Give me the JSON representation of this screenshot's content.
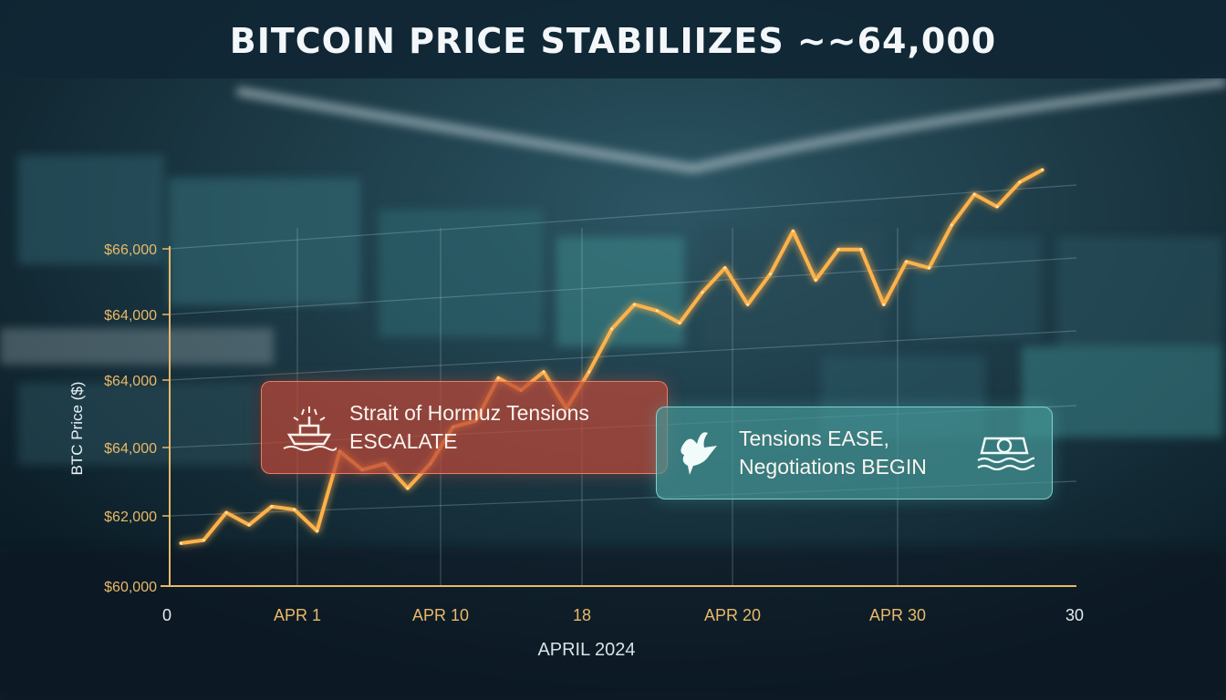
{
  "title": "BITCOIN PRICE STABILIIZES ~~64,000",
  "colors": {
    "line": "#ffb24a",
    "tick_labels": "#e9b968",
    "gridline": "rgba(200,220,230,0.25)",
    "event_negative": "#c04a3a",
    "event_positive": "#4a9a98"
  },
  "annotations": [
    {
      "id": "hormuz",
      "line1": "Strait of Hormuz Tensions",
      "line2": "ESCALATE",
      "icon": "ship-fire-icon"
    },
    {
      "id": "ease",
      "line1": "Tensions EASE,",
      "line2": "Negotiations BEGIN",
      "icon": "dove-icon",
      "icon2": "ship-waves-icon"
    }
  ],
  "chart_data": {
    "type": "line",
    "title": "BITCOIN PRICE STABILIIZES ~~64,000",
    "xlabel": "APRIL 2024",
    "ylabel": "BTC Price ($)",
    "x_tick_labels": [
      "0",
      "APR 1",
      "APR 10",
      "18",
      "APR 20",
      "APR 30",
      "30"
    ],
    "y_tick_labels": [
      "$60,000",
      "$62,000",
      "$64,000",
      "$64,000",
      "$64,000",
      "$66,000"
    ],
    "grid": true,
    "series": [
      {
        "x": [
          0.5,
          1.5,
          2.5,
          3.5,
          4.5,
          5.5,
          6.5,
          7.5,
          8.5,
          9.5,
          10.5,
          11.5,
          12.5,
          13.5,
          14.5,
          15.5,
          16.5,
          17.5,
          18.5,
          19.5,
          20.5,
          21.5,
          22.5,
          23.5,
          24.5,
          25.5,
          26.5,
          27.5,
          28.5,
          29.5,
          30.5,
          31.5,
          32.5,
          33.5,
          34.5,
          35.5,
          36.5,
          37.5,
          38.5
        ],
        "values": [
          60700,
          60750,
          61200,
          61000,
          61300,
          61250,
          60900,
          62200,
          61900,
          62000,
          61600,
          62000,
          62600,
          62700,
          63400,
          63200,
          63500,
          62900,
          63500,
          64200,
          64600,
          64500,
          64300,
          64800,
          65200,
          64600,
          65100,
          65800,
          65000,
          65500,
          65500,
          64600,
          65300,
          65200,
          65900,
          66400,
          66200,
          66600,
          66800
        ]
      }
    ]
  }
}
